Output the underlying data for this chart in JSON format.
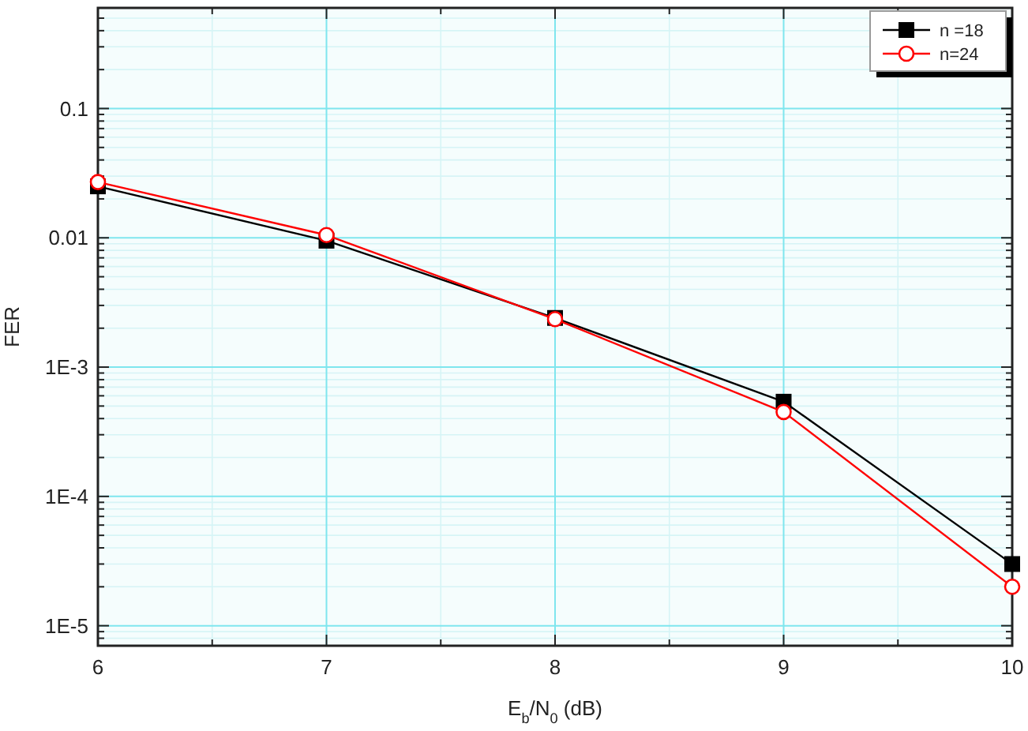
{
  "chart_data": {
    "type": "line",
    "xlabel": "E$_{b}$/N$_{0}$ (dB)",
    "ylabel": "FER",
    "x": [
      6,
      7,
      8,
      9,
      10
    ],
    "series": [
      {
        "name": "n =18",
        "color": "#000000",
        "marker": "square",
        "values": [
          0.025,
          0.0095,
          0.0024,
          0.00054,
          3e-05
        ]
      },
      {
        "name": "n=24",
        "color": "#ff0000",
        "marker": "circle",
        "values": [
          0.027,
          0.0105,
          0.00235,
          0.00045,
          2e-05
        ]
      }
    ],
    "log": "y",
    "xlim": [
      6,
      10
    ],
    "ylim": [
      7e-06,
      0.6
    ],
    "xticks": [
      6,
      7,
      8,
      9,
      10
    ],
    "yticks": [
      {
        "value": 0.1,
        "label": "0.1"
      },
      {
        "value": 0.01,
        "label": "0.01"
      },
      {
        "value": 0.001,
        "label": "1E-3"
      },
      {
        "value": 0.0001,
        "label": "1E-4"
      },
      {
        "value": 1e-05,
        "label": "1E-5"
      }
    ],
    "grid": true,
    "legend": "top right",
    "line_style": "solid"
  }
}
